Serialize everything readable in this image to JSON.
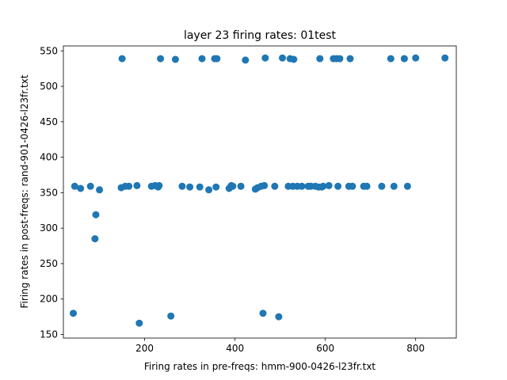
{
  "chart_data": {
    "type": "scatter",
    "title": "layer 23 firing rates: 01test",
    "xlabel": "Firing rates in pre-freqs: hmm-900-0426-l23fr.txt",
    "ylabel": "Firing rates in post-freqs: rand-901-0426-l23fr.txt",
    "xlim": [
      20,
      890
    ],
    "ylim": [
      145,
      557
    ],
    "xticks": [
      200,
      400,
      600,
      800
    ],
    "yticks": [
      150,
      200,
      250,
      300,
      350,
      400,
      450,
      500,
      550
    ],
    "grid": false,
    "marker_color": "#1f77b4",
    "points": [
      [
        42,
        180
      ],
      [
        45,
        359
      ],
      [
        58,
        356
      ],
      [
        80,
        359
      ],
      [
        90,
        285
      ],
      [
        92,
        319
      ],
      [
        100,
        354
      ],
      [
        148,
        357
      ],
      [
        150,
        539
      ],
      [
        157,
        359
      ],
      [
        165,
        359
      ],
      [
        183,
        360
      ],
      [
        188,
        166
      ],
      [
        215,
        359
      ],
      [
        223,
        360
      ],
      [
        230,
        358
      ],
      [
        232,
        360
      ],
      [
        235,
        539
      ],
      [
        258,
        176
      ],
      [
        268,
        538
      ],
      [
        283,
        359
      ],
      [
        300,
        358
      ],
      [
        322,
        358
      ],
      [
        327,
        539
      ],
      [
        342,
        354
      ],
      [
        355,
        539
      ],
      [
        358,
        358
      ],
      [
        360,
        539
      ],
      [
        387,
        356
      ],
      [
        390,
        358
      ],
      [
        392,
        360
      ],
      [
        395,
        359
      ],
      [
        413,
        359
      ],
      [
        423,
        537
      ],
      [
        445,
        355
      ],
      [
        450,
        357
      ],
      [
        458,
        359
      ],
      [
        462,
        180
      ],
      [
        465,
        360
      ],
      [
        467,
        540
      ],
      [
        488,
        359
      ],
      [
        497,
        175
      ],
      [
        505,
        540
      ],
      [
        518,
        359
      ],
      [
        522,
        539
      ],
      [
        528,
        359
      ],
      [
        530,
        538
      ],
      [
        538,
        359
      ],
      [
        548,
        359
      ],
      [
        562,
        359
      ],
      [
        568,
        359
      ],
      [
        578,
        359
      ],
      [
        585,
        358
      ],
      [
        588,
        539
      ],
      [
        592,
        358
      ],
      [
        595,
        359
      ],
      [
        608,
        360
      ],
      [
        618,
        539
      ],
      [
        625,
        539
      ],
      [
        628,
        359
      ],
      [
        632,
        539
      ],
      [
        652,
        359
      ],
      [
        655,
        539
      ],
      [
        660,
        359
      ],
      [
        685,
        359
      ],
      [
        692,
        359
      ],
      [
        725,
        359
      ],
      [
        745,
        539
      ],
      [
        752,
        359
      ],
      [
        775,
        539
      ],
      [
        782,
        359
      ],
      [
        800,
        540
      ],
      [
        865,
        540
      ]
    ]
  }
}
